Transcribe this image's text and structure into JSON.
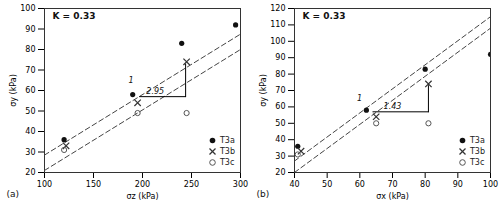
{
  "chart_data": [
    {
      "type": "scatter",
      "title": "K = 0.33",
      "panel_label": "(a)",
      "xlabel": "σz (kPa)",
      "ylabel": "σy (kPa)",
      "xlim": [
        100,
        300
      ],
      "ylim": [
        20,
        100
      ],
      "xticks": [
        100,
        150,
        200,
        250,
        300
      ],
      "yticks": [
        20,
        30,
        40,
        50,
        60,
        70,
        80,
        90,
        100
      ],
      "grid": false,
      "legend": "lower right",
      "series": [
        {
          "name": "T3a",
          "color": "#111111",
          "marker": "circle",
          "x": [
            120,
            190,
            240,
            295
          ],
          "values": [
            36,
            58,
            83,
            92
          ]
        },
        {
          "name": "T3b",
          "color": "#333333",
          "marker": "x",
          "x": [
            122,
            195,
            245
          ],
          "values": [
            33,
            54,
            74
          ]
        },
        {
          "name": "T3c",
          "color": "#555555",
          "marker": "open circle",
          "x": [
            120,
            195,
            245
          ],
          "values": [
            31,
            49,
            49
          ]
        }
      ],
      "lines": [
        {
          "type": "line",
          "color": "#444444",
          "line_style": "dashed",
          "x": [
            100,
            300
          ],
          "values": [
            28.5,
            87.5
          ]
        },
        {
          "type": "line",
          "color": "#444444",
          "line_style": "dashed",
          "x": [
            100,
            300
          ],
          "values": [
            21.0,
            80.0
          ]
        },
        {
          "type": "line",
          "color": "#000000",
          "line_style": "solid",
          "x": [
            197,
            244
          ],
          "values": [
            57,
            57
          ]
        },
        {
          "type": "line",
          "color": "#000000",
          "line_style": "solid",
          "x": [
            244,
            244
          ],
          "values": [
            57,
            73
          ]
        }
      ],
      "annotations": [
        {
          "text": "2.95",
          "x": 213,
          "y": 58,
          "position": "above"
        },
        {
          "text": "1",
          "x": 192,
          "y": 65,
          "position": "left"
        }
      ]
    },
    {
      "type": "scatter",
      "title": "K = 0.33",
      "panel_label": "(b)",
      "xlabel": "σx (kPa)",
      "ylabel": "σy (kPa)",
      "xlim": [
        40,
        100
      ],
      "ylim": [
        20,
        120
      ],
      "xticks": [
        40,
        50,
        60,
        70,
        80,
        90,
        100
      ],
      "yticks": [
        20,
        30,
        40,
        50,
        60,
        70,
        80,
        90,
        100,
        110,
        120
      ],
      "grid": false,
      "legend": "lower right",
      "series": [
        {
          "name": "T3a",
          "color": "#111111",
          "marker": "circle",
          "x": [
            41,
            62,
            80,
            100
          ],
          "values": [
            36,
            58,
            83,
            92
          ]
        },
        {
          "name": "T3b",
          "color": "#333333",
          "marker": "x",
          "x": [
            42,
            65,
            81
          ],
          "values": [
            33,
            54,
            74
          ]
        },
        {
          "name": "T3c",
          "color": "#555555",
          "marker": "open circle",
          "x": [
            41,
            65,
            81
          ],
          "values": [
            31,
            50,
            50
          ]
        }
      ],
      "lines": [
        {
          "type": "line",
          "color": "#444444",
          "line_style": "dashed",
          "x": [
            40,
            100
          ],
          "values": [
            27.0,
            115.0
          ]
        },
        {
          "type": "line",
          "color": "#444444",
          "line_style": "dashed",
          "x": [
            40,
            100
          ],
          "values": [
            20.0,
            108.0
          ]
        },
        {
          "type": "line",
          "color": "#000000",
          "line_style": "solid",
          "x": [
            64,
            81
          ],
          "values": [
            57,
            57
          ]
        },
        {
          "type": "line",
          "color": "#000000",
          "line_style": "solid",
          "x": [
            81,
            81
          ],
          "values": [
            57,
            73
          ]
        }
      ],
      "annotations": [
        {
          "text": "1.43",
          "x": 70,
          "y": 58,
          "position": "above"
        },
        {
          "text": "1",
          "x": 61,
          "y": 65,
          "position": "left"
        }
      ]
    }
  ]
}
